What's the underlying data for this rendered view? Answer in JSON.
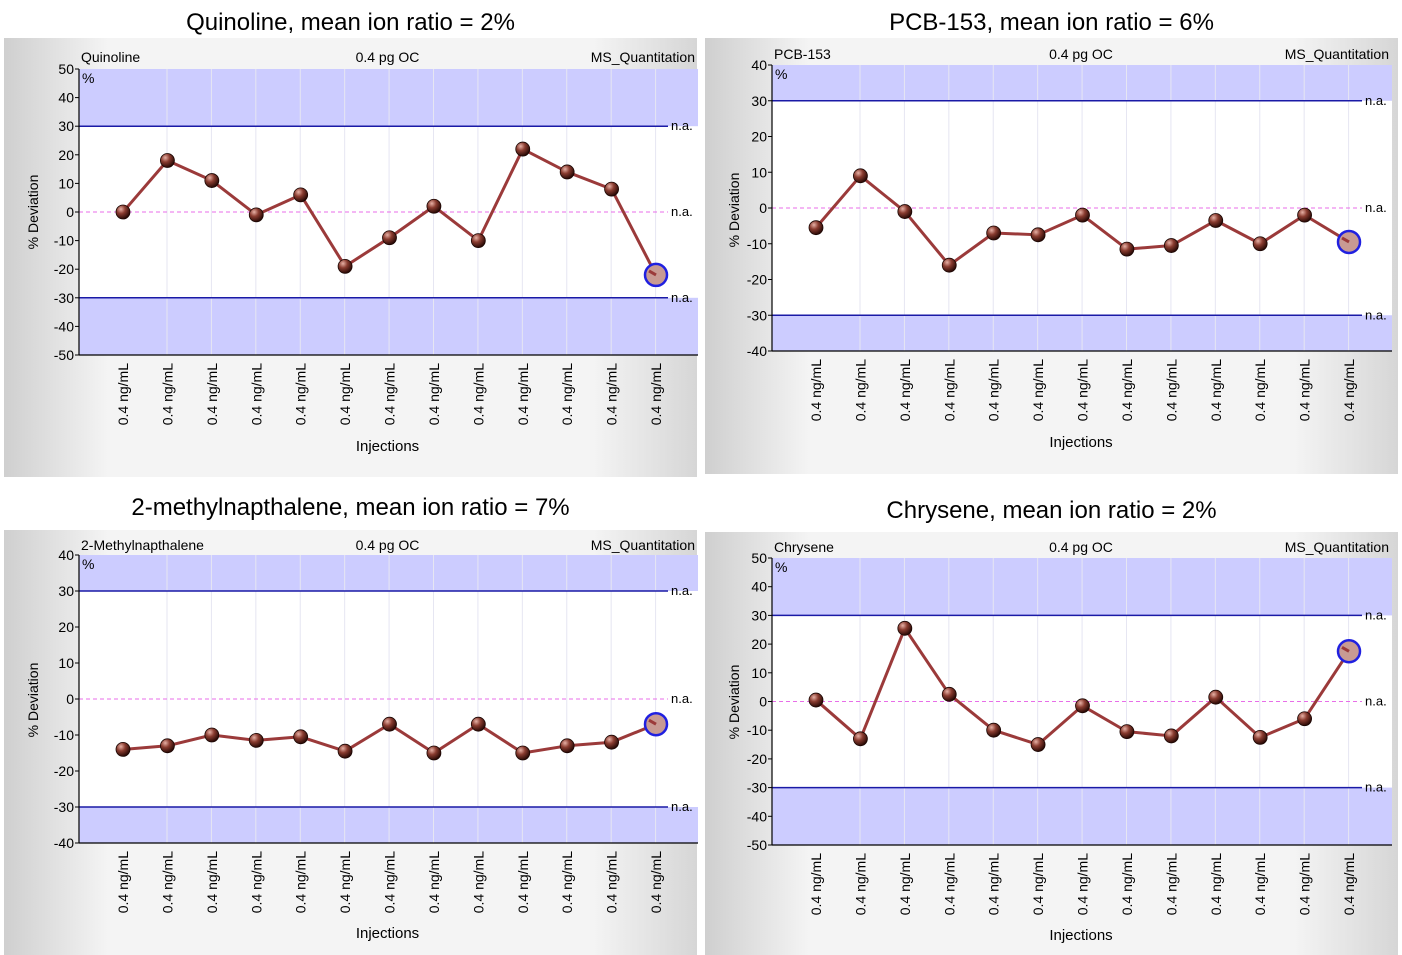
{
  "chart_data": [
    {
      "type": "line",
      "title": "Quinoline, mean ion ratio = 2%",
      "header_left": "Quinoline",
      "header_center": "0.4 pg OC",
      "header_right": "MS_Quantitation",
      "unit_label": "%",
      "ylabel": "% Deviation",
      "xlabel": "Injections",
      "ylim": [
        -50,
        50
      ],
      "yticks": [
        50,
        40,
        30,
        20,
        10,
        0,
        -10,
        -20,
        -30,
        -40,
        -50
      ],
      "limits": {
        "upper": 30,
        "lower": -30,
        "center": 0
      },
      "limit_label": "n.a.",
      "categories": [
        "0.4 ng/mL",
        "0.4 ng/mL",
        "0.4 ng/mL",
        "0.4 ng/mL",
        "0.4 ng/mL",
        "0.4 ng/mL",
        "0.4 ng/mL",
        "0.4 ng/mL",
        "0.4 ng/mL",
        "0.4 ng/mL",
        "0.4 ng/mL",
        "0.4 ng/mL",
        "0.4 ng/mL"
      ],
      "values": [
        0,
        18,
        11,
        -1,
        6,
        -19,
        -9,
        2,
        -10,
        22,
        14,
        8,
        -22
      ],
      "highlight_last": true,
      "colors": {
        "band": "#ccccff",
        "limit_line": "#1a1aa6",
        "center_line": "#e86ee8",
        "series": "#9b3a3a",
        "highlight": "#2020e0"
      }
    },
    {
      "type": "line",
      "title": "PCB-153, mean ion ratio = 6%",
      "header_left": "PCB-153",
      "header_center": "0.4 pg OC",
      "header_right": "MS_Quantitation",
      "unit_label": "%",
      "ylabel": "% Deviation",
      "xlabel": "Injections",
      "ylim": [
        -40,
        40
      ],
      "yticks": [
        40,
        30,
        20,
        10,
        0,
        -10,
        -20,
        -30,
        -40
      ],
      "limits": {
        "upper": 30,
        "lower": -30,
        "center": 0
      },
      "limit_label": "n.a.",
      "categories": [
        "0.4 ng/mL",
        "0.4 ng/mL",
        "0.4 ng/mL",
        "0.4 ng/mL",
        "0.4 ng/mL",
        "0.4 ng/mL",
        "0.4 ng/mL",
        "0.4 ng/mL",
        "0.4 ng/mL",
        "0.4 ng/mL",
        "0.4 ng/mL",
        "0.4 ng/mL",
        "0.4 ng/mL"
      ],
      "values": [
        -5.5,
        9,
        -1,
        -16,
        -7,
        -7.5,
        -2,
        -11.5,
        -10.5,
        -3.5,
        -10,
        -2,
        -9.5
      ],
      "highlight_last": true,
      "colors": {
        "band": "#ccccff",
        "limit_line": "#1a1aa6",
        "center_line": "#e86ee8",
        "series": "#9b3a3a",
        "highlight": "#2020e0"
      }
    },
    {
      "type": "line",
      "title": "2-methylnapthalene, mean ion ratio = 7%",
      "header_left": "2-Methylnapthalene",
      "header_center": "0.4 pg OC",
      "header_right": "MS_Quantitation",
      "unit_label": "%",
      "ylabel": "% Deviation",
      "xlabel": "Injections",
      "ylim": [
        -40,
        40
      ],
      "yticks": [
        40,
        30,
        20,
        10,
        0,
        -10,
        -20,
        -30,
        -40
      ],
      "limits": {
        "upper": 30,
        "lower": -30,
        "center": 0
      },
      "limit_label": "n.a.",
      "categories": [
        "0.4 ng/mL",
        "0.4 ng/mL",
        "0.4 ng/mL",
        "0.4 ng/mL",
        "0.4 ng/mL",
        "0.4 ng/mL",
        "0.4 ng/mL",
        "0.4 ng/mL",
        "0.4 ng/mL",
        "0.4 ng/mL",
        "0.4 ng/mL",
        "0.4 ng/mL",
        "0.4 ng/mL"
      ],
      "values": [
        -14,
        -13,
        -10,
        -11.5,
        -10.5,
        -14.5,
        -7,
        -15,
        -7,
        -15,
        -13,
        -12,
        -7
      ],
      "highlight_last": true,
      "colors": {
        "band": "#ccccff",
        "limit_line": "#1a1aa6",
        "center_line": "#e86ee8",
        "series": "#9b3a3a",
        "highlight": "#2020e0"
      }
    },
    {
      "type": "line",
      "title": "Chrysene, mean ion ratio = 2%",
      "header_left": "Chrysene",
      "header_center": "0.4 pg OC",
      "header_right": "MS_Quantitation",
      "unit_label": "%",
      "ylabel": "% Deviation",
      "xlabel": "Injections",
      "ylim": [
        -50,
        50
      ],
      "yticks": [
        50,
        40,
        30,
        20,
        10,
        0,
        -10,
        -20,
        -30,
        -40,
        -50
      ],
      "limits": {
        "upper": 30,
        "lower": -30,
        "center": 0
      },
      "limit_label": "n.a.",
      "categories": [
        "0.4 ng/mL",
        "0.4 ng/mL",
        "0.4 ng/mL",
        "0.4 ng/mL",
        "0.4 ng/mL",
        "0.4 ng/mL",
        "0.4 ng/mL",
        "0.4 ng/mL",
        "0.4 ng/mL",
        "0.4 ng/mL",
        "0.4 ng/mL",
        "0.4 ng/mL",
        "0.4 ng/mL"
      ],
      "values": [
        0.5,
        -13,
        25.5,
        2.5,
        -10,
        -15,
        -1.5,
        -10.5,
        -12,
        1.5,
        -12.5,
        -6,
        17.5
      ],
      "highlight_last": true,
      "colors": {
        "band": "#ccccff",
        "limit_line": "#1a1aa6",
        "center_line": "#e86ee8",
        "series": "#9b3a3a",
        "highlight": "#2020e0"
      }
    }
  ]
}
